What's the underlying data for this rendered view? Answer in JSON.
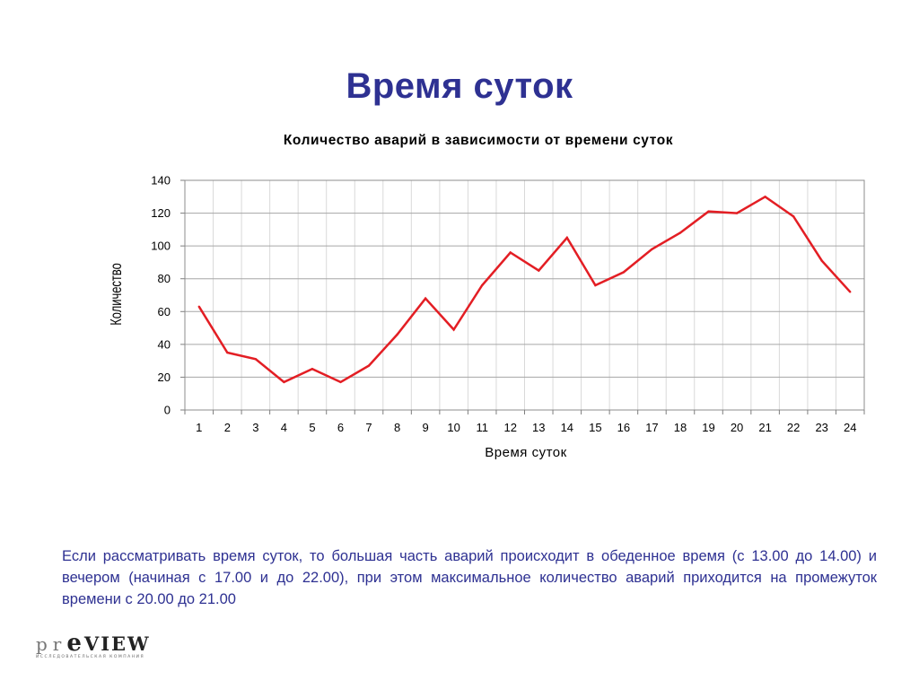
{
  "slide": {
    "title": "Время суток",
    "description": "Если рассматривать время суток, то большая часть аварий происходит в обеденное время (с 13.00 до 14.00) и вечером (начиная с 17.00 и до 22.00), при  этом  максимальное  количество аварий приходится на промежуток времени с 20.00 до 21.00"
  },
  "logo": {
    "text_pr": "pr",
    "text_e": "e",
    "text_view": "VIEW",
    "subtitle": "ИССЛЕДОВАТЕЛЬСКАЯ КОМПАНИЯ"
  },
  "chart_data": {
    "type": "line",
    "title": "Количество аварий в зависимости от времени суток",
    "xlabel": "Время суток",
    "ylabel": "Количество",
    "categories": [
      "1",
      "2",
      "3",
      "4",
      "5",
      "6",
      "7",
      "8",
      "9",
      "10",
      "11",
      "12",
      "13",
      "14",
      "15",
      "16",
      "17",
      "18",
      "19",
      "20",
      "21",
      "22",
      "23",
      "24"
    ],
    "series": [
      {
        "values": [
          63,
          35,
          31,
          17,
          25,
          17,
          27,
          46,
          68,
          49,
          76,
          96,
          85,
          105,
          76,
          84,
          98,
          108,
          121,
          120,
          130,
          118,
          91,
          72
        ],
        "color": "#e31e24"
      }
    ],
    "ylim": [
      0,
      140
    ],
    "yticks": [
      0,
      20,
      40,
      60,
      80,
      100,
      120,
      140
    ],
    "grid": true,
    "legend": "none"
  }
}
